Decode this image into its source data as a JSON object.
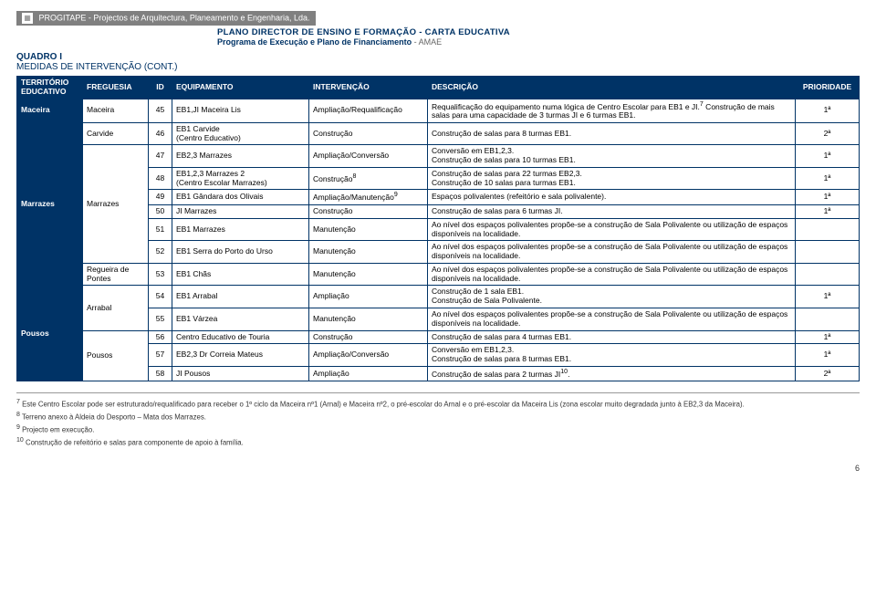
{
  "banner": {
    "company": "PROGITAPE - Projectos de Arquitectura, Planeamento e Engenharia, Lda."
  },
  "header": {
    "line1": "PLANO DIRECTOR DE ENSINO E FORMAÇÃO - CARTA EDUCATIVA",
    "line2_dark": "Programa de Execução e Plano de Financiamento",
    "line2_grey": " - AMAE"
  },
  "quadro": {
    "title": "QUADRO I",
    "subtitle": "MEDIDAS DE INTERVENÇÃO (CONT.)"
  },
  "columns": {
    "territorio": "TERRITÓRIO EDUCATIVO",
    "freguesia": "FREGUESIA",
    "id": "ID",
    "equipamento": "EQUIPAMENTO",
    "intervencao": "INTERVENÇÃO",
    "descricao": "DESCRIÇÃO",
    "prioridade": "PRIORIDADE"
  },
  "territories": [
    {
      "name": "Maceira",
      "rowspan": 1
    },
    {
      "name": "Marrazes",
      "rowspan": 8
    },
    {
      "name": "Pousos",
      "rowspan": 5
    }
  ],
  "freguesias": [
    {
      "name": "Maceira",
      "rowspan": 1
    },
    {
      "name": "Carvide",
      "rowspan": 1
    },
    {
      "name": "Marrazes",
      "rowspan": 6
    },
    {
      "name": "Regueira de Pontes",
      "rowspan": 1
    },
    {
      "name": "Arrabal",
      "rowspan": 2
    },
    {
      "name": "Pousos",
      "rowspan": 3
    }
  ],
  "rows": [
    {
      "id": "45",
      "equip": "EB1,JI Maceira Lis",
      "intv": "Ampliação/Requalificação",
      "desc": "Requalificação do equipamento numa lógica de Centro Escolar para EB1 e JI.<sup>7</sup> Construção de mais salas para uma capacidade de 3 turmas JI e 6 turmas EB1.",
      "prio": "1ª"
    },
    {
      "id": "46",
      "equip": "EB1 Carvide<br>(Centro Educativo)",
      "intv": "Construção",
      "desc": "Construção de salas para 8 turmas EB1.",
      "prio": "2ª"
    },
    {
      "id": "47",
      "equip": "EB2,3 Marrazes",
      "intv": "Ampliação/Conversão",
      "desc": "Conversão em EB1,2,3.<br>Construção de salas para 10 turmas EB1.",
      "prio": "1ª"
    },
    {
      "id": "48",
      "equip": "EB1,2,3 Marrazes 2<br>(Centro Escolar Marrazes)",
      "intv": "Construção<sup>8</sup>",
      "desc": "Construção de salas para 22 turmas EB2,3.<br>Construção de 10 salas para turmas EB1.",
      "prio": "1ª"
    },
    {
      "id": "49",
      "equip": "EB1 Gândara dos Olivais",
      "intv": "Ampliação/Manutenção<sup>9</sup>",
      "desc": "Espaços polivalentes (refeitório e sala polivalente).",
      "prio": "1ª"
    },
    {
      "id": "50",
      "equip": "JI Marrazes",
      "intv": "Construção",
      "desc": "Construção de salas para 6 turmas JI.",
      "prio": "1ª"
    },
    {
      "id": "51",
      "equip": "EB1 Marrazes",
      "intv": "Manutenção",
      "desc": "Ao nível dos espaços polivalentes propõe-se a construção de Sala Polivalente ou utilização de espaços disponíveis na localidade.",
      "prio": ""
    },
    {
      "id": "52",
      "equip": "EB1 Serra do Porto do Urso",
      "intv": "Manutenção",
      "desc": "Ao nível dos espaços polivalentes propõe-se a construção de Sala Polivalente ou utilização de espaços disponíveis na localidade.",
      "prio": ""
    },
    {
      "id": "53",
      "equip": "EB1 Chãs",
      "intv": "Manutenção",
      "desc": "Ao nível dos espaços polivalentes propõe-se a construção de Sala Polivalente ou utilização de espaços disponíveis na localidade.",
      "prio": ""
    },
    {
      "id": "54",
      "equip": "EB1 Arrabal",
      "intv": "Ampliação",
      "desc": "Construção de 1 sala EB1.<br>Construção de Sala Polivalente.",
      "prio": "1ª"
    },
    {
      "id": "55",
      "equip": "EB1 Várzea",
      "intv": "Manutenção",
      "desc": "Ao nível dos espaços polivalentes propõe-se a construção de Sala Polivalente ou utilização de espaços disponíveis na localidade.",
      "prio": ""
    },
    {
      "id": "56",
      "equip": "Centro Educativo de Touria",
      "intv": "Construção",
      "desc": "Construção de salas para 4 turmas EB1.",
      "prio": "1ª"
    },
    {
      "id": "57",
      "equip": "EB2,3 Dr Correia Mateus",
      "intv": "Ampliação/Conversão",
      "desc": "Conversão em EB1,2,3.<br>Construção de salas para 8 turmas EB1.",
      "prio": "1ª"
    },
    {
      "id": "58",
      "equip": "JI Pousos",
      "intv": "Ampliação",
      "desc": "Construção de salas para 2 turmas JI<sup>10</sup>.",
      "prio": "2ª"
    }
  ],
  "footnotes": {
    "f7": "Este Centro Escolar pode ser estruturado/requalificado para receber o 1º ciclo da Maceira nº1 (Arnal) e Maceira nº2, o pré-escolar do Arnal e o pré-escolar da Maceira Lis (zona escolar muito degradada junto à EB2,3 da Maceira).",
    "f8": "Terreno anexo à Aldeia do Desporto – Mata dos Marrazes.",
    "f9": "Projecto em execução.",
    "f10": "Construção de refeitório e salas para componente de apoio à família."
  },
  "page_number": "6"
}
